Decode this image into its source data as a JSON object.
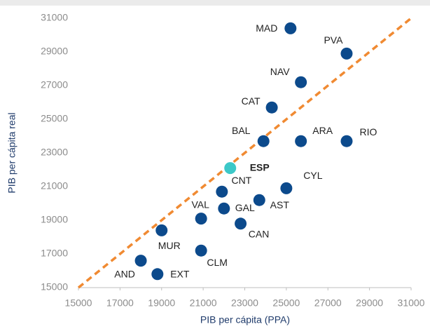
{
  "chart_data": {
    "type": "scatter",
    "x_label": "PIB per cápita (PPA)",
    "y_label": "PIB per cápita real",
    "labels": [
      "MAD",
      "PVA",
      "NAV",
      "CAT",
      "BAL",
      "ARA",
      "RIO",
      "ESP",
      "CNT",
      "CYL",
      "AST",
      "GAL",
      "VAL",
      "CAN",
      "MUR",
      "CLM",
      "AND",
      "EXT"
    ],
    "x": [
      25200,
      27900,
      25700,
      24300,
      23900,
      25700,
      27900,
      22300,
      21900,
      25000,
      23700,
      22000,
      20900,
      22800,
      19000,
      20900,
      18000,
      18800
    ],
    "values": [
      30400,
      28900,
      27200,
      25700,
      23700,
      23700,
      23700,
      22100,
      20700,
      20900,
      20200,
      19700,
      19100,
      18800,
      18400,
      17200,
      16600,
      15800
    ],
    "point_colors": [
      "#0c4a8c",
      "#0c4a8c",
      "#0c4a8c",
      "#0c4a8c",
      "#0c4a8c",
      "#0c4a8c",
      "#0c4a8c",
      "#3cc8c8",
      "#0c4a8c",
      "#0c4a8c",
      "#0c4a8c",
      "#0c4a8c",
      "#0c4a8c",
      "#0c4a8c",
      "#0c4a8c",
      "#0c4a8c",
      "#0c4a8c",
      "#0c4a8c"
    ],
    "label_weights": [
      "normal",
      "normal",
      "normal",
      "normal",
      "normal",
      "normal",
      "normal",
      "bold",
      "normal",
      "normal",
      "normal",
      "normal",
      "normal",
      "normal",
      "normal",
      "normal",
      "normal",
      "normal"
    ],
    "xlim": [
      15000,
      31000
    ],
    "xticks": [
      15000,
      17000,
      19000,
      21000,
      23000,
      25000,
      27000,
      29000,
      31000
    ],
    "ylim": [
      15000,
      31000
    ],
    "yticks": [
      15000,
      17000,
      19000,
      21000,
      23000,
      25000,
      27000,
      29000,
      31000
    ],
    "grid": false,
    "reference_line": {
      "type": "identity",
      "color": "#f08a32"
    }
  }
}
